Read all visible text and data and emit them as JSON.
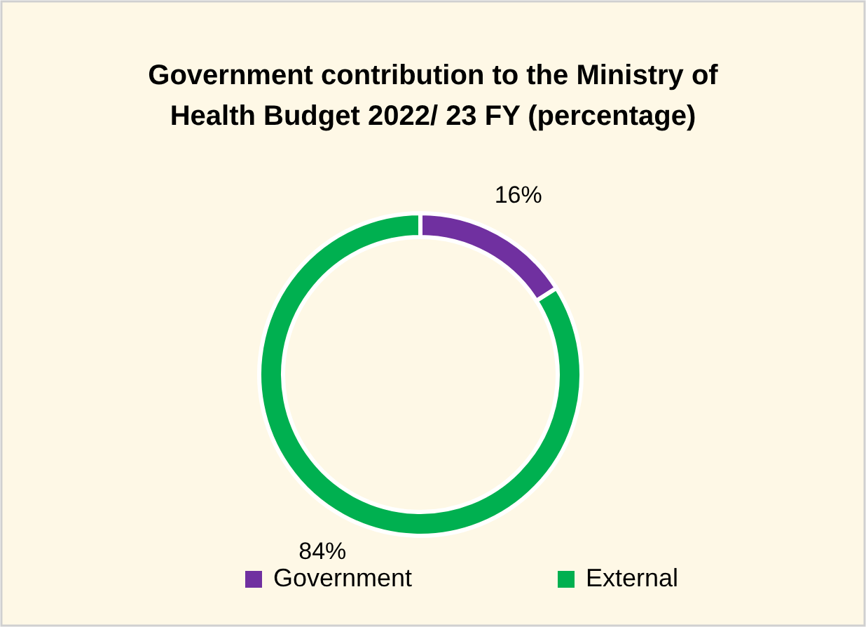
{
  "chart_data": {
    "type": "donut",
    "title": "Government contribution to the Ministry of Health Budget 2022/ 23 FY (percentage)",
    "categories": [
      "Government",
      "External"
    ],
    "values": [
      16,
      84
    ],
    "colors": [
      "#7030a0",
      "#00b050"
    ],
    "value_labels": [
      "16%",
      "84%"
    ],
    "legend": "bottom"
  }
}
